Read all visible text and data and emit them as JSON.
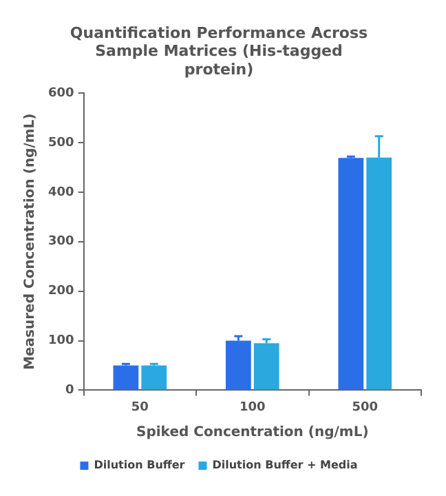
{
  "chart_data": {
    "type": "bar",
    "title": "Quantification Performance Across Sample Matrices (His-tagged protein)",
    "xlabel": "Spiked Concentration (ng/mL)",
    "ylabel": "Measured Concentration (ng/mL)",
    "categories": [
      "50",
      "100",
      "500"
    ],
    "series": [
      {
        "name": "Dilution Buffer",
        "color": "#2a6fe8",
        "values": [
          50,
          100,
          469
        ],
        "errors": [
          [
            50,
            53
          ],
          [
            100,
            109
          ],
          [
            469,
            472
          ]
        ]
      },
      {
        "name": "Dilution Buffer + Media",
        "color": "#2aa8e0",
        "values": [
          50,
          95,
          470
        ],
        "errors": [
          [
            50,
            53
          ],
          [
            95,
            103
          ],
          [
            470,
            513
          ]
        ]
      }
    ],
    "ylim": [
      0,
      600
    ],
    "yticks": [
      0,
      100,
      200,
      300,
      400,
      500,
      600
    ],
    "grid": false,
    "legend": "bottom"
  }
}
